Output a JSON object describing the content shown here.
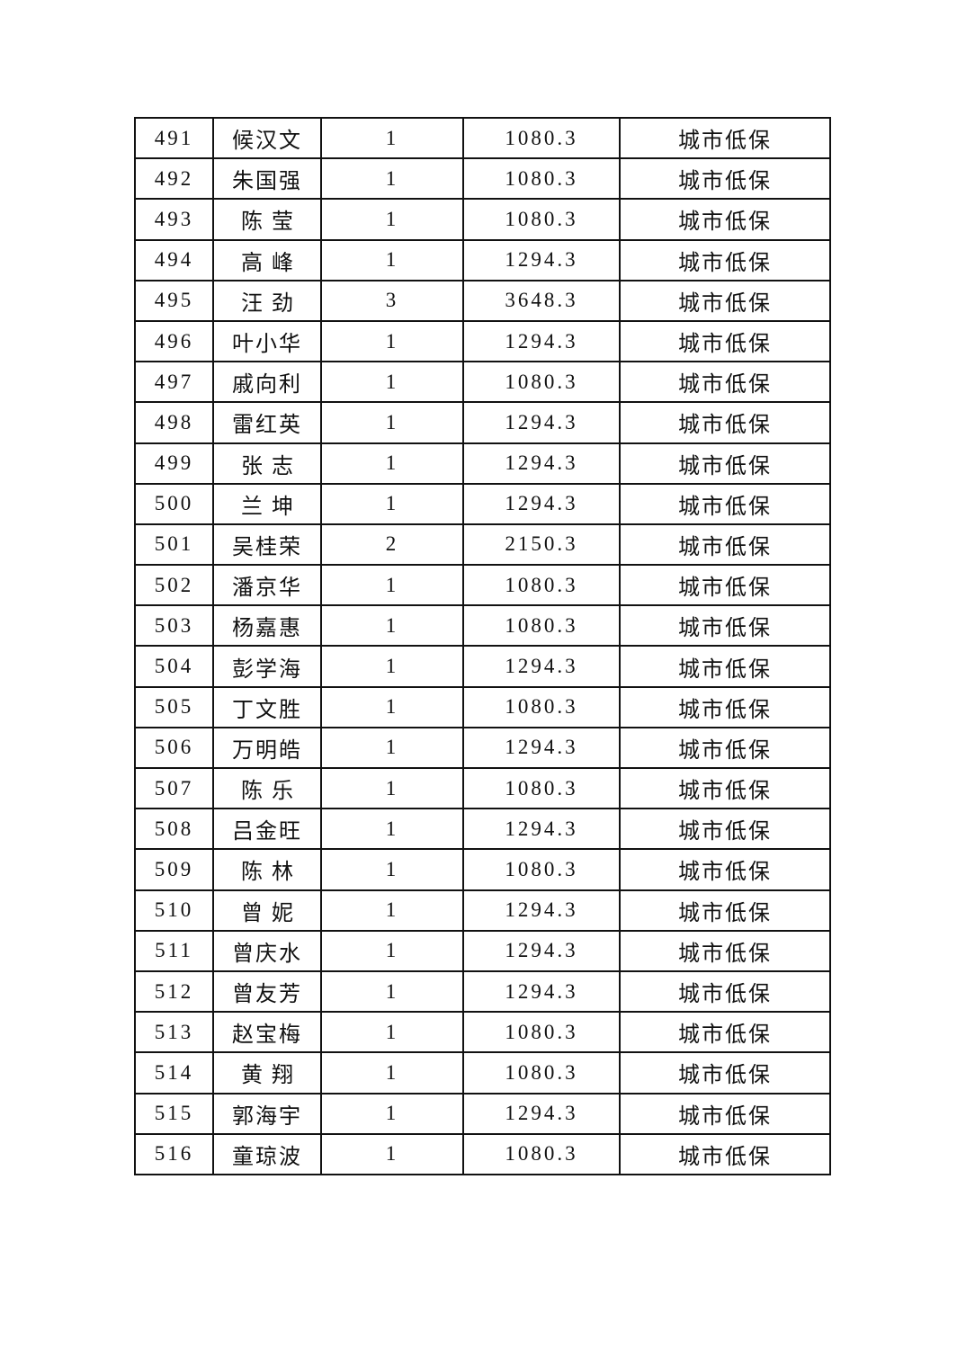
{
  "table": {
    "rows": [
      [
        "491",
        "候汉文",
        "1",
        "1080.3",
        "城市低保"
      ],
      [
        "492",
        "朱国强",
        "1",
        "1080.3",
        "城市低保"
      ],
      [
        "493",
        "陈莹",
        "1",
        "1080.3",
        "城市低保"
      ],
      [
        "494",
        "高峰",
        "1",
        "1294.3",
        "城市低保"
      ],
      [
        "495",
        "汪劲",
        "3",
        "3648.3",
        "城市低保"
      ],
      [
        "496",
        "叶小华",
        "1",
        "1294.3",
        "城市低保"
      ],
      [
        "497",
        "戚向利",
        "1",
        "1080.3",
        "城市低保"
      ],
      [
        "498",
        "雷红英",
        "1",
        "1294.3",
        "城市低保"
      ],
      [
        "499",
        "张志",
        "1",
        "1294.3",
        "城市低保"
      ],
      [
        "500",
        "兰坤",
        "1",
        "1294.3",
        "城市低保"
      ],
      [
        "501",
        "吴桂荣",
        "2",
        "2150.3",
        "城市低保"
      ],
      [
        "502",
        "潘京华",
        "1",
        "1080.3",
        "城市低保"
      ],
      [
        "503",
        "杨嘉惠",
        "1",
        "1080.3",
        "城市低保"
      ],
      [
        "504",
        "彭学海",
        "1",
        "1294.3",
        "城市低保"
      ],
      [
        "505",
        "丁文胜",
        "1",
        "1080.3",
        "城市低保"
      ],
      [
        "506",
        "万明皓",
        "1",
        "1294.3",
        "城市低保"
      ],
      [
        "507",
        "陈乐",
        "1",
        "1080.3",
        "城市低保"
      ],
      [
        "508",
        "吕金旺",
        "1",
        "1294.3",
        "城市低保"
      ],
      [
        "509",
        "陈林",
        "1",
        "1080.3",
        "城市低保"
      ],
      [
        "510",
        "曾妮",
        "1",
        "1294.3",
        "城市低保"
      ],
      [
        "511",
        "曾庆水",
        "1",
        "1294.3",
        "城市低保"
      ],
      [
        "512",
        "曾友芳",
        "1",
        "1294.3",
        "城市低保"
      ],
      [
        "513",
        "赵宝梅",
        "1",
        "1080.3",
        "城市低保"
      ],
      [
        "514",
        "黄翔",
        "1",
        "1080.3",
        "城市低保"
      ],
      [
        "515",
        "郭海宇",
        "1",
        "1294.3",
        "城市低保"
      ],
      [
        "516",
        "童琼波",
        "1",
        "1080.3",
        "城市低保"
      ]
    ]
  }
}
